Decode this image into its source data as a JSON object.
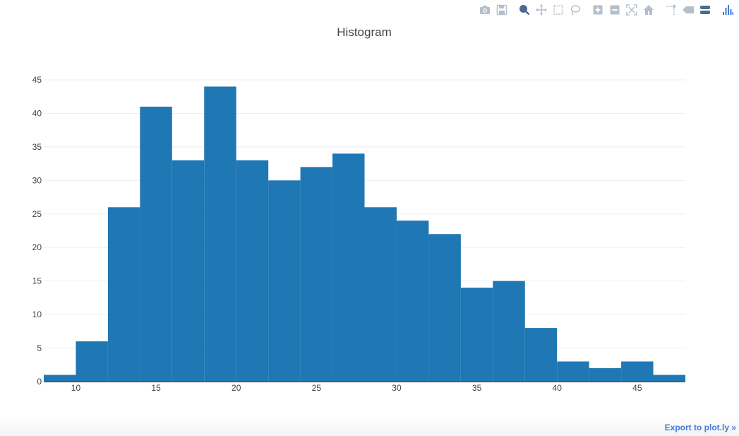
{
  "chart_data": {
    "type": "histogram",
    "title": "Histogram",
    "xlabel": "",
    "ylabel": "",
    "bins": [
      {
        "x0": 8,
        "x1": 10,
        "count": 1
      },
      {
        "x0": 10,
        "x1": 12,
        "count": 6
      },
      {
        "x0": 12,
        "x1": 14,
        "count": 26
      },
      {
        "x0": 14,
        "x1": 16,
        "count": 41
      },
      {
        "x0": 16,
        "x1": 18,
        "count": 33
      },
      {
        "x0": 18,
        "x1": 20,
        "count": 44
      },
      {
        "x0": 20,
        "x1": 22,
        "count": 33
      },
      {
        "x0": 22,
        "x1": 24,
        "count": 30
      },
      {
        "x0": 24,
        "x1": 26,
        "count": 32
      },
      {
        "x0": 26,
        "x1": 28,
        "count": 34
      },
      {
        "x0": 28,
        "x1": 30,
        "count": 26
      },
      {
        "x0": 30,
        "x1": 32,
        "count": 24
      },
      {
        "x0": 32,
        "x1": 34,
        "count": 22
      },
      {
        "x0": 34,
        "x1": 36,
        "count": 14
      },
      {
        "x0": 36,
        "x1": 38,
        "count": 15
      },
      {
        "x0": 38,
        "x1": 40,
        "count": 8
      },
      {
        "x0": 40,
        "x1": 42,
        "count": 3
      },
      {
        "x0": 42,
        "x1": 44,
        "count": 2
      },
      {
        "x0": 44,
        "x1": 46,
        "count": 3
      },
      {
        "x0": 46,
        "x1": 48,
        "count": 1
      }
    ],
    "xlim": [
      8,
      48
    ],
    "ylim": [
      0,
      45
    ],
    "xticks": [
      10,
      15,
      20,
      25,
      30,
      35,
      40,
      45
    ],
    "yticks": [
      0,
      5,
      10,
      15,
      20,
      25,
      30,
      35,
      40,
      45
    ],
    "grid": "horizontal",
    "legend": "none",
    "bar_color": "#1f77b4"
  },
  "modebar": {
    "groups": [
      [
        {
          "name": "camera-icon"
        },
        {
          "name": "save-icon"
        }
      ],
      [
        {
          "name": "zoom-icon",
          "active": true
        },
        {
          "name": "pan-icon"
        },
        {
          "name": "box-select-icon"
        },
        {
          "name": "lasso-select-icon"
        }
      ],
      [
        {
          "name": "zoom-in-icon"
        },
        {
          "name": "zoom-out-icon"
        },
        {
          "name": "autoscale-icon"
        },
        {
          "name": "home-icon"
        }
      ],
      [
        {
          "name": "spike-lines-icon"
        },
        {
          "name": "hover-closest-icon"
        },
        {
          "name": "hover-compare-icon"
        }
      ],
      [
        {
          "name": "plotly-logo-icon"
        }
      ]
    ]
  },
  "footer": {
    "export_label": "Export to plot.ly »"
  }
}
